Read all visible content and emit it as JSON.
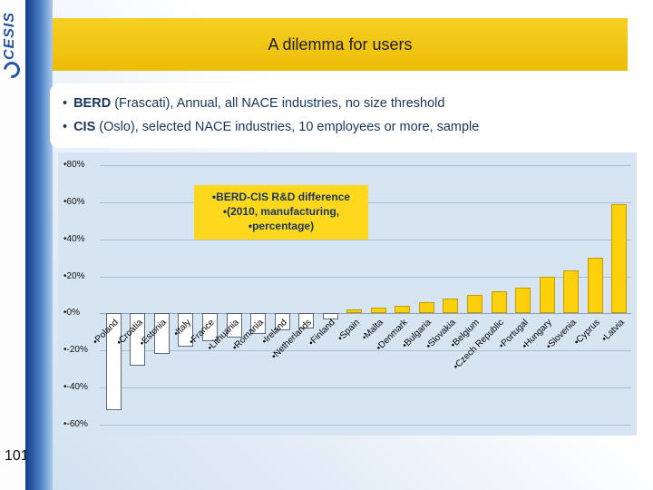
{
  "slide": {
    "title": "A dilemma for users",
    "page_number": "101",
    "logo_text": "CESIS",
    "bullets": [
      {
        "marker": "•",
        "bold": "BERD",
        "rest": " (Frascati), Annual, all NACE industries, no size threshold"
      },
      {
        "marker": "•",
        "bold": "CIS",
        "rest": " (Oslo), selected NACE industries, 10 employees or more, sample"
      }
    ]
  },
  "theme": {
    "banner_gold": "#EFC312",
    "chart_title_bg": "#FFD71C",
    "bar_positive": "#FCD00A",
    "bar_positive_border": "#C19B00",
    "bar_negative": "#FFFFFF",
    "bar_negative_border": "#5A6A7D",
    "plot_background": "#D7E4F1",
    "sidebar_blue_dark": "#0F3C86",
    "sidebar_blue_light": "#A9C9EA",
    "text_navy": "#17365D"
  },
  "chart_data": {
    "type": "bar",
    "title_lines": [
      "•BERD-CIS R&D difference",
      "•(2010, manufacturing,",
      "•percentage)"
    ],
    "xlabel": "",
    "ylabel": "",
    "unit": "percent",
    "ylim": [
      -60,
      80
    ],
    "grid": true,
    "legend": "none",
    "label_bullet": "•",
    "yticks": [
      {
        "label": "•80%",
        "value": 80
      },
      {
        "label": "•60%",
        "value": 60
      },
      {
        "label": "•40%",
        "value": 40
      },
      {
        "label": "•20%",
        "value": 20
      },
      {
        "label": "•0%",
        "value": 0
      },
      {
        "label": "•-20%",
        "value": -20
      },
      {
        "label": "•-40%",
        "value": -40
      },
      {
        "label": "•-60%",
        "value": -60
      }
    ],
    "categories": [
      "Poland",
      "Croatia",
      "Estonia",
      "Italy",
      "France",
      "Lithuania",
      "Romania",
      "Ireland",
      "Netherlands",
      "Finland",
      "Spain",
      "Malta",
      "Denmark",
      "Bulgaria",
      "Slovakia",
      "Belgium",
      "Czech Republic",
      "Portugal",
      "Hungary",
      "Slovenia",
      "Cyprus",
      "Latvia"
    ],
    "values": [
      -52,
      -28,
      -22,
      -18,
      -15,
      -13,
      -11,
      -9,
      -8,
      -3,
      2,
      3,
      4,
      6,
      8,
      10,
      12,
      14,
      20,
      23,
      30,
      59
    ]
  }
}
